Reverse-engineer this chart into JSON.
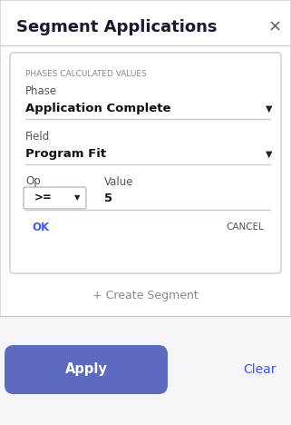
{
  "title": "Segment Applications",
  "close_x": "×",
  "section_label": "PHASES CALCULATED VALUES",
  "phase_label": "Phase",
  "phase_value": "Application Complete",
  "field_label": "Field",
  "field_value": "Program Fit",
  "op_label": "Op",
  "op_value": ">=",
  "value_label": "Value",
  "value_value": "5",
  "ok_text": "OK",
  "cancel_text": "CANCEL",
  "create_segment_text": "+ Create Segment",
  "apply_text": "Apply",
  "clear_text": "Clear",
  "bg_color": "#f0f0f5",
  "card_color": "#ffffff",
  "title_color": "#1a1a2e",
  "section_label_color": "#888888",
  "label_color": "#555555",
  "value_color": "#111111",
  "ok_color": "#3d5af1",
  "cancel_color": "#555555",
  "create_color": "#888888",
  "apply_bg": "#5c6bc0",
  "apply_text_color": "#ffffff",
  "clear_color": "#3d5af1",
  "border_color": "#dddddd",
  "line_color": "#cccccc"
}
